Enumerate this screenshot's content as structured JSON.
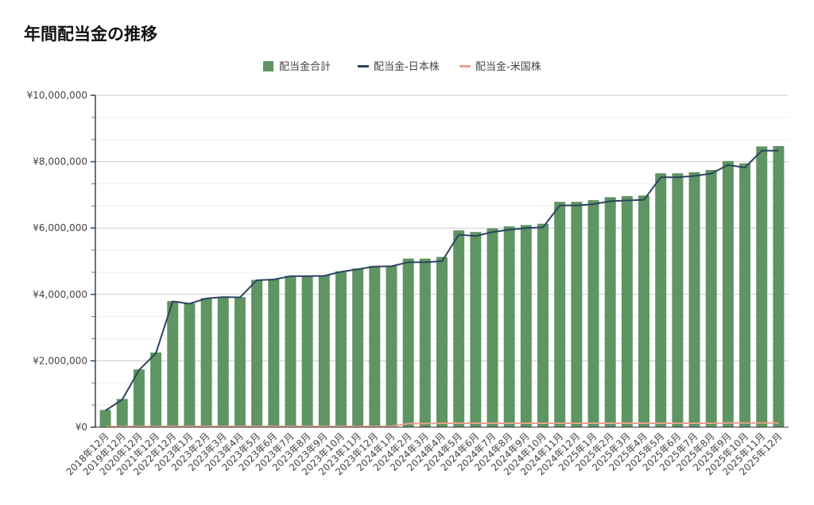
{
  "chart_data": {
    "type": "bar",
    "title": "年間配当金の推移",
    "xlabel": "",
    "ylabel": "",
    "ylim": [
      0,
      10000000
    ],
    "yticks": [
      0,
      2000000,
      4000000,
      6000000,
      8000000,
      10000000
    ],
    "ytick_labels": [
      "¥0",
      "¥2,000,000",
      "¥4,000,000",
      "¥6,000,000",
      "¥8,000,000",
      "¥10,000,000"
    ],
    "grid": true,
    "legend_position": "top-center",
    "categories": [
      "2018年12月",
      "2019年12月",
      "2020年12月",
      "2021年12月",
      "2022年12月",
      "2023年1月",
      "2023年2月",
      "2023年3月",
      "2023年4月",
      "2023年5月",
      "2023年6月",
      "2023年7月",
      "2023年8月",
      "2023年9月",
      "2023年10月",
      "2023年11月",
      "2023年12月",
      "2024年1月",
      "2024年2月",
      "2024年3月",
      "2024年4月",
      "2024年5月",
      "2024年6月",
      "2024年7月",
      "2024年8月",
      "2024年9月",
      "2024年10月",
      "2024年11月",
      "2024年12月",
      "2025年1月",
      "2025年2月",
      "2025年3月",
      "2025年4月",
      "2025年5月",
      "2025年6月",
      "2025年7月",
      "2025年8月",
      "2025年9月",
      "2025年10月",
      "2025年11月",
      "2025年12月"
    ],
    "series": [
      {
        "name": "配当金合計",
        "kind": "bar",
        "color": "#5f9463",
        "values": [
          520000,
          850000,
          1740000,
          2250000,
          3800000,
          3730000,
          3890000,
          3930000,
          3920000,
          4440000,
          4460000,
          4560000,
          4560000,
          4580000,
          4700000,
          4780000,
          4860000,
          4870000,
          5080000,
          5080000,
          5130000,
          5930000,
          5880000,
          5990000,
          6050000,
          6090000,
          6130000,
          6790000,
          6790000,
          6840000,
          6930000,
          6960000,
          6980000,
          7650000,
          7650000,
          7680000,
          7750000,
          8020000,
          7950000,
          8460000,
          8470000
        ]
      },
      {
        "name": "配当金-日本株",
        "kind": "line",
        "color": "#2c4460",
        "values": [
          500000,
          830000,
          1720000,
          2230000,
          3790000,
          3720000,
          3880000,
          3920000,
          3910000,
          4430000,
          4450000,
          4550000,
          4550000,
          4560000,
          4680000,
          4760000,
          4840000,
          4850000,
          4970000,
          4970000,
          5000000,
          5800000,
          5760000,
          5880000,
          5950000,
          6000000,
          6020000,
          6680000,
          6680000,
          6720000,
          6810000,
          6830000,
          6850000,
          7530000,
          7530000,
          7570000,
          7640000,
          7900000,
          7820000,
          8330000,
          8330000
        ]
      },
      {
        "name": "配当金-米国株",
        "kind": "line",
        "color": "#e8a090",
        "values": [
          15000,
          18000,
          20000,
          22000,
          25000,
          25000,
          25000,
          25000,
          25000,
          25000,
          25000,
          25000,
          25000,
          25000,
          25000,
          25000,
          25000,
          25000,
          110000,
          110000,
          120000,
          120000,
          120000,
          120000,
          120000,
          120000,
          120000,
          120000,
          120000,
          120000,
          120000,
          120000,
          120000,
          120000,
          120000,
          120000,
          120000,
          130000,
          130000,
          130000,
          130000
        ]
      }
    ]
  }
}
